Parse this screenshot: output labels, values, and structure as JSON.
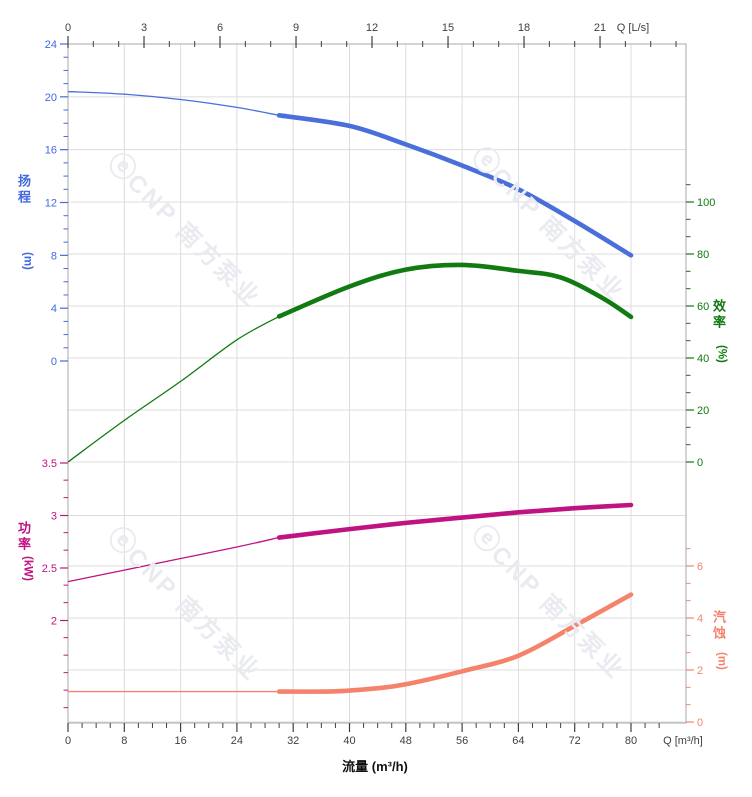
{
  "chart_data": {
    "type": "line",
    "description": "Pump performance curves: head, efficiency, power and NPSH versus flow",
    "x_axis_bottom": {
      "label": "Q [m³/h]",
      "axis_title": "流量 (m³/h)",
      "ticks": [
        0,
        8,
        16,
        24,
        32,
        40,
        48,
        56,
        64,
        72,
        80
      ],
      "minor_step": 2,
      "minor_max": 84,
      "color": "#3f3f3f"
    },
    "x_axis_top": {
      "label": "Q [L/s]",
      "ticks": [
        0,
        3,
        6,
        9,
        12,
        15,
        18,
        21
      ],
      "minor_step": 1,
      "minor_max": 24,
      "color": "#3f3f3f"
    },
    "y_axes": {
      "head": {
        "title": "扬程",
        "unit": "(m)",
        "color": "#4169e1",
        "ticks": [
          "24",
          "20",
          "16",
          "12",
          "8",
          "4",
          "0"
        ],
        "minor_step": 1,
        "minor_range": [
          0,
          24
        ]
      },
      "efficiency": {
        "title": "效率",
        "unit": "(%)",
        "color": "#117a11",
        "ticks": [
          "100",
          "80",
          "60",
          "40",
          "20",
          "0"
        ],
        "minor_step": 6.6667,
        "minor_range": [
          0,
          113.3
        ]
      },
      "power": {
        "title": "功率",
        "unit": "(kW)",
        "color": "#c01382",
        "ticks": [
          "3.5",
          "3",
          "2.5",
          "2"
        ],
        "minor_step": 0.16667,
        "minor_range": [
          1.17,
          3.5
        ]
      },
      "npsh": {
        "title": "汽蚀",
        "unit": "(m)",
        "color": "#f5836c",
        "ticks": [
          "6",
          "4",
          "2",
          "0"
        ],
        "minor_step": 0.66667,
        "minor_range": [
          0,
          7.33
        ]
      }
    },
    "series": [
      {
        "name": "head",
        "axis": "head",
        "color": "#4a6fdb",
        "duty_split": 30,
        "points": [
          [
            0,
            20.4
          ],
          [
            8,
            20.2
          ],
          [
            16,
            19.8
          ],
          [
            24,
            19.2
          ],
          [
            30,
            18.6
          ],
          [
            40,
            17.8
          ],
          [
            48,
            16.4
          ],
          [
            56,
            14.8
          ],
          [
            64,
            13.0
          ],
          [
            72,
            10.6
          ],
          [
            80,
            8.0
          ]
        ]
      },
      {
        "name": "efficiency",
        "axis": "efficiency",
        "color": "#117a11",
        "duty_split": 30,
        "points": [
          [
            0,
            0
          ],
          [
            8,
            16
          ],
          [
            16,
            31
          ],
          [
            24,
            47
          ],
          [
            30,
            56
          ],
          [
            40,
            67.5
          ],
          [
            48,
            74
          ],
          [
            56,
            75.8
          ],
          [
            64,
            73.5
          ],
          [
            70,
            71
          ],
          [
            76,
            63
          ],
          [
            80,
            55.8
          ]
        ]
      },
      {
        "name": "power",
        "axis": "power",
        "color": "#c01382",
        "duty_split": 30,
        "points": [
          [
            0,
            2.37
          ],
          [
            8,
            2.48
          ],
          [
            16,
            2.59
          ],
          [
            24,
            2.7
          ],
          [
            30,
            2.79
          ],
          [
            40,
            2.87
          ],
          [
            48,
            2.93
          ],
          [
            56,
            2.98
          ],
          [
            64,
            3.03
          ],
          [
            72,
            3.07
          ],
          [
            80,
            3.1
          ]
        ]
      },
      {
        "name": "npsh",
        "axis": "npsh",
        "color": "#f5836c",
        "duty_split": 30,
        "points": [
          [
            0,
            1.17
          ],
          [
            10,
            1.17
          ],
          [
            20,
            1.17
          ],
          [
            30,
            1.17
          ],
          [
            38,
            1.18
          ],
          [
            44,
            1.3
          ],
          [
            48,
            1.45
          ],
          [
            56,
            1.95
          ],
          [
            64,
            2.55
          ],
          [
            72,
            3.7
          ],
          [
            80,
            4.9
          ]
        ]
      }
    ],
    "watermark": {
      "logo": "ⓔ",
      "text": "CNP 南方泵业",
      "color": "#e9ebf1"
    },
    "grid_color": "#dcdcdc",
    "frame_color": "#a9a9a9",
    "legend": "none",
    "x_range_m3h": [
      0,
      87.8
    ],
    "x_range_ls": [
      0,
      24.4
    ]
  }
}
